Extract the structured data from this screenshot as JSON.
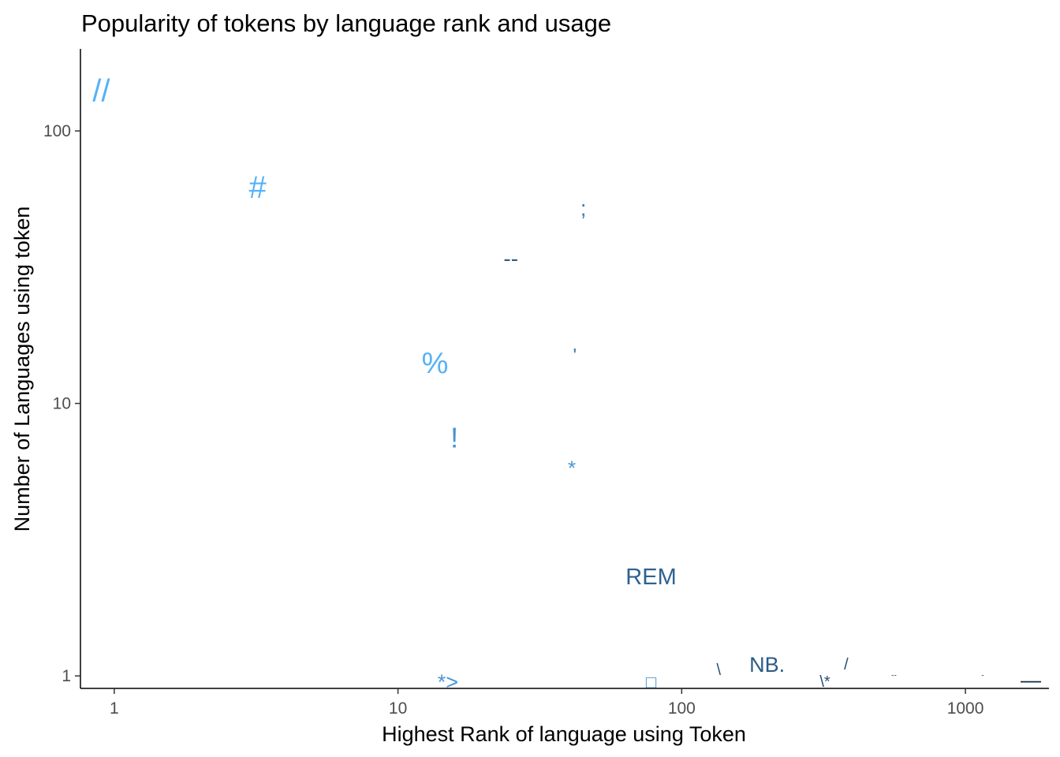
{
  "chart_data": {
    "type": "scatter",
    "title": "Popularity of tokens by language rank and usage",
    "xlabel": "Highest Rank of language using Token",
    "ylabel": "Number of Languages using token",
    "x_scale": "log10",
    "y_scale": "log10",
    "xlim": [
      0.76,
      1970
    ],
    "ylim": [
      0.9,
      200
    ],
    "x_ticks": [
      1,
      10,
      100,
      1000
    ],
    "x_tick_labels": [
      "1",
      "10",
      "100",
      "1000"
    ],
    "y_ticks": [
      1,
      10,
      100
    ],
    "y_tick_labels": [
      "1",
      "10",
      "100"
    ],
    "grid": false,
    "legend": "none",
    "points": [
      {
        "label": "//",
        "x": 0.9,
        "y": 140,
        "color": "#56B1F7",
        "size": 40
      },
      {
        "label": "#",
        "x": 3.2,
        "y": 62,
        "color": "#56B1F7",
        "size": 40
      },
      {
        "label": ";",
        "x": 45,
        "y": 52,
        "color": "#3C7FB5",
        "size": 28
      },
      {
        "label": "--",
        "x": 25,
        "y": 34,
        "color": "#2B5E8A",
        "size": 28
      },
      {
        "label": "%",
        "x": 13.5,
        "y": 14,
        "color": "#56B1F7",
        "size": 38
      },
      {
        "label": "'",
        "x": 42,
        "y": 15,
        "color": "#3A78AB",
        "size": 24
      },
      {
        "label": "!",
        "x": 15.8,
        "y": 7.5,
        "color": "#4691CF",
        "size": 36
      },
      {
        "label": "*",
        "x": 41,
        "y": 5.8,
        "color": "#4A97D6",
        "size": 26
      },
      {
        "label": "REM",
        "x": 78,
        "y": 2.3,
        "color": "#2E6291",
        "size": 29
      },
      {
        "label": "NB.",
        "x": 200,
        "y": 1.1,
        "color": "#2A5B86",
        "size": 27
      },
      {
        "label": "\\",
        "x": 135,
        "y": 1.05,
        "color": "#274F74",
        "size": 20
      },
      {
        "label": "/",
        "x": 380,
        "y": 1.1,
        "color": "#274F74",
        "size": 20
      },
      {
        "label": "*>",
        "x": 15,
        "y": 0.95,
        "color": "#4A97D6",
        "size": 27
      },
      {
        "label": "□",
        "x": 78,
        "y": 0.95,
        "color": "#3E84BE",
        "size": 22
      },
      {
        "label": "\\*",
        "x": 320,
        "y": 0.95,
        "color": "#274F74",
        "size": 20
      },
      {
        "label": "--",
        "x": 560,
        "y": 1.0,
        "color": "#274F74",
        "size": 10
      },
      {
        "label": "-",
        "x": 1150,
        "y": 1.0,
        "color": "#274F74",
        "size": 10
      },
      {
        "label": "—",
        "x": 1700,
        "y": 0.97,
        "color": "#132B43",
        "size": 26
      }
    ]
  }
}
